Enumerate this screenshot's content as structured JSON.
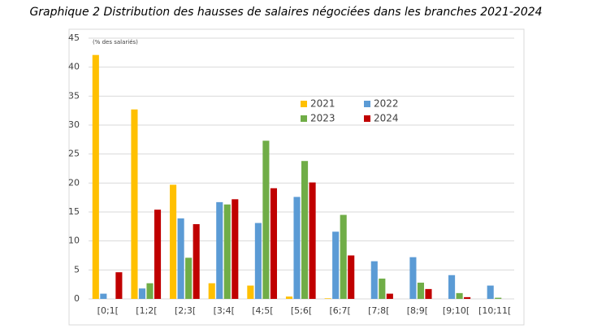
{
  "chart_data": {
    "type": "bar",
    "title": "Graphique 2 Distribution des hausses de salaires négociées dans les branches 2021-2024",
    "y_label": "(% des salariés)",
    "categories": [
      "[0;1[",
      "[1;2[",
      "[2;3[",
      "[3;4[",
      "[4;5[",
      "[5;6[",
      "[6;7[",
      "[7;8[",
      "[8;9[",
      "[9;10[",
      "[10;11["
    ],
    "series": [
      {
        "name": "2021",
        "color": "#ffc000",
        "values": [
          42.1,
          32.7,
          19.7,
          2.7,
          2.3,
          0.4,
          0.1,
          0,
          0,
          0,
          0
        ]
      },
      {
        "name": "2022",
        "color": "#5b9bd5",
        "values": [
          0.9,
          1.8,
          13.9,
          16.7,
          13.1,
          17.6,
          11.6,
          6.5,
          7.2,
          4.1,
          2.3
        ]
      },
      {
        "name": "2023",
        "color": "#70ad47",
        "values": [
          0,
          2.7,
          7.1,
          16.3,
          27.3,
          23.8,
          14.5,
          3.5,
          2.8,
          1.0,
          0.2
        ]
      },
      {
        "name": "2024",
        "color": "#c00000",
        "values": [
          4.6,
          15.4,
          12.9,
          17.2,
          19.1,
          20.1,
          7.5,
          0.9,
          1.7,
          0.3,
          0
        ]
      }
    ],
    "ylim": [
      0,
      45
    ],
    "yticks": [
      0,
      5,
      10,
      15,
      20,
      25,
      30,
      35,
      40,
      45
    ],
    "grid": true
  }
}
